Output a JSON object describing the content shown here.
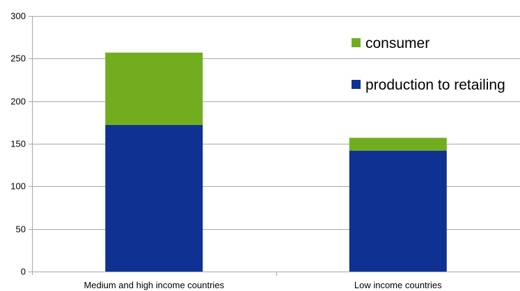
{
  "chart_data": {
    "type": "bar",
    "stacked": true,
    "categories": [
      "Medium and high income countries",
      "Low income countries"
    ],
    "series": [
      {
        "name": "production to retailing",
        "values": [
          172,
          142
        ],
        "color": "#0f3292"
      },
      {
        "name": "consumer",
        "values": [
          85,
          15
        ],
        "color": "#72ad1f"
      }
    ],
    "ylim": [
      0,
      300
    ],
    "yticks": [
      0,
      50,
      100,
      150,
      200,
      250,
      300
    ],
    "grid": true,
    "legend_position": "top-right",
    "legend_order": [
      "consumer",
      "production to retailing"
    ],
    "title": "",
    "xlabel": "",
    "ylabel": ""
  }
}
